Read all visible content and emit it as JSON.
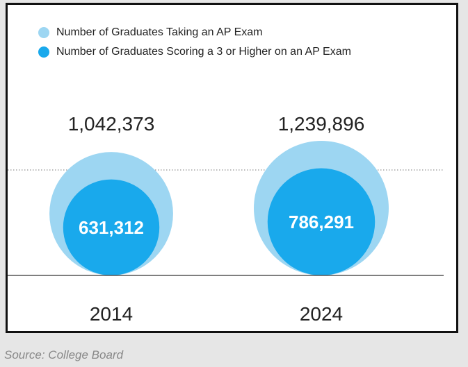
{
  "chart_data": {
    "type": "bubble",
    "series": [
      {
        "name": "Number of Graduates Taking an AP Exam",
        "color": "#9dd6f2",
        "values": [
          1042373,
          1239896
        ]
      },
      {
        "name": "Number of Graduates Scoring a 3 or Higher on an AP Exam",
        "color": "#19a9ec",
        "values": [
          631312,
          786291
        ]
      }
    ],
    "categories": [
      "2014",
      "2024"
    ],
    "value_labels": {
      "outer": [
        "1,042,373",
        "1,239,896"
      ],
      "inner": [
        "631,312",
        "786,291"
      ]
    },
    "reference_line": "dotted",
    "baseline": "solid",
    "grid": false,
    "legend": "top-left"
  },
  "source": "Source: College Board"
}
